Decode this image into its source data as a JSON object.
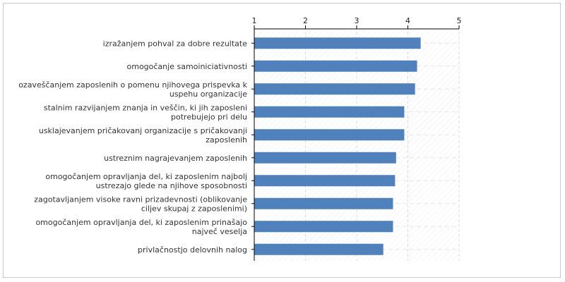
{
  "chart_data": {
    "type": "bar",
    "orientation": "horizontal",
    "title": "",
    "xlabel": "",
    "ylabel": "",
    "xlim": [
      1,
      5
    ],
    "ticks": [
      "1",
      "2",
      "3",
      "4",
      "5"
    ],
    "tick_values": [
      1,
      2,
      3,
      4,
      5
    ],
    "grid": true,
    "bar_color": "#4f81bd",
    "categories": [
      [
        "izražanjem pohval za dobre rezultate"
      ],
      [
        "omogočanje samoiniciativnosti"
      ],
      [
        "ozaveščanjem zaposlenih o pomenu njihovega prispevka k",
        "uspehu organizacije"
      ],
      [
        "stalnim razvijanjem znanja in veščin, ki jih zaposleni",
        "potrebujejo pri delu"
      ],
      [
        "usklajevanjem pričakovanj organizacije s pričakovanji",
        "zaposlenih"
      ],
      [
        "ustreznim nagrajevanjem zaposlenih"
      ],
      [
        "omogočanjem opravljanja del, ki zaposlenim najbolj",
        "ustrezajo glede na njihove sposobnosti"
      ],
      [
        "zagotavljanjem visoke ravni prizadevnosti (oblikovanje",
        "ciljev skupaj z zaposlenimi)"
      ],
      [
        "omogočanjem opravljanja del, ki zaposlenim prinašajo",
        "največ veselja"
      ],
      [
        "privlačnostjo delovnih nalog"
      ]
    ],
    "values": [
      4.25,
      4.18,
      4.14,
      3.93,
      3.93,
      3.77,
      3.75,
      3.71,
      3.71,
      3.52
    ]
  }
}
